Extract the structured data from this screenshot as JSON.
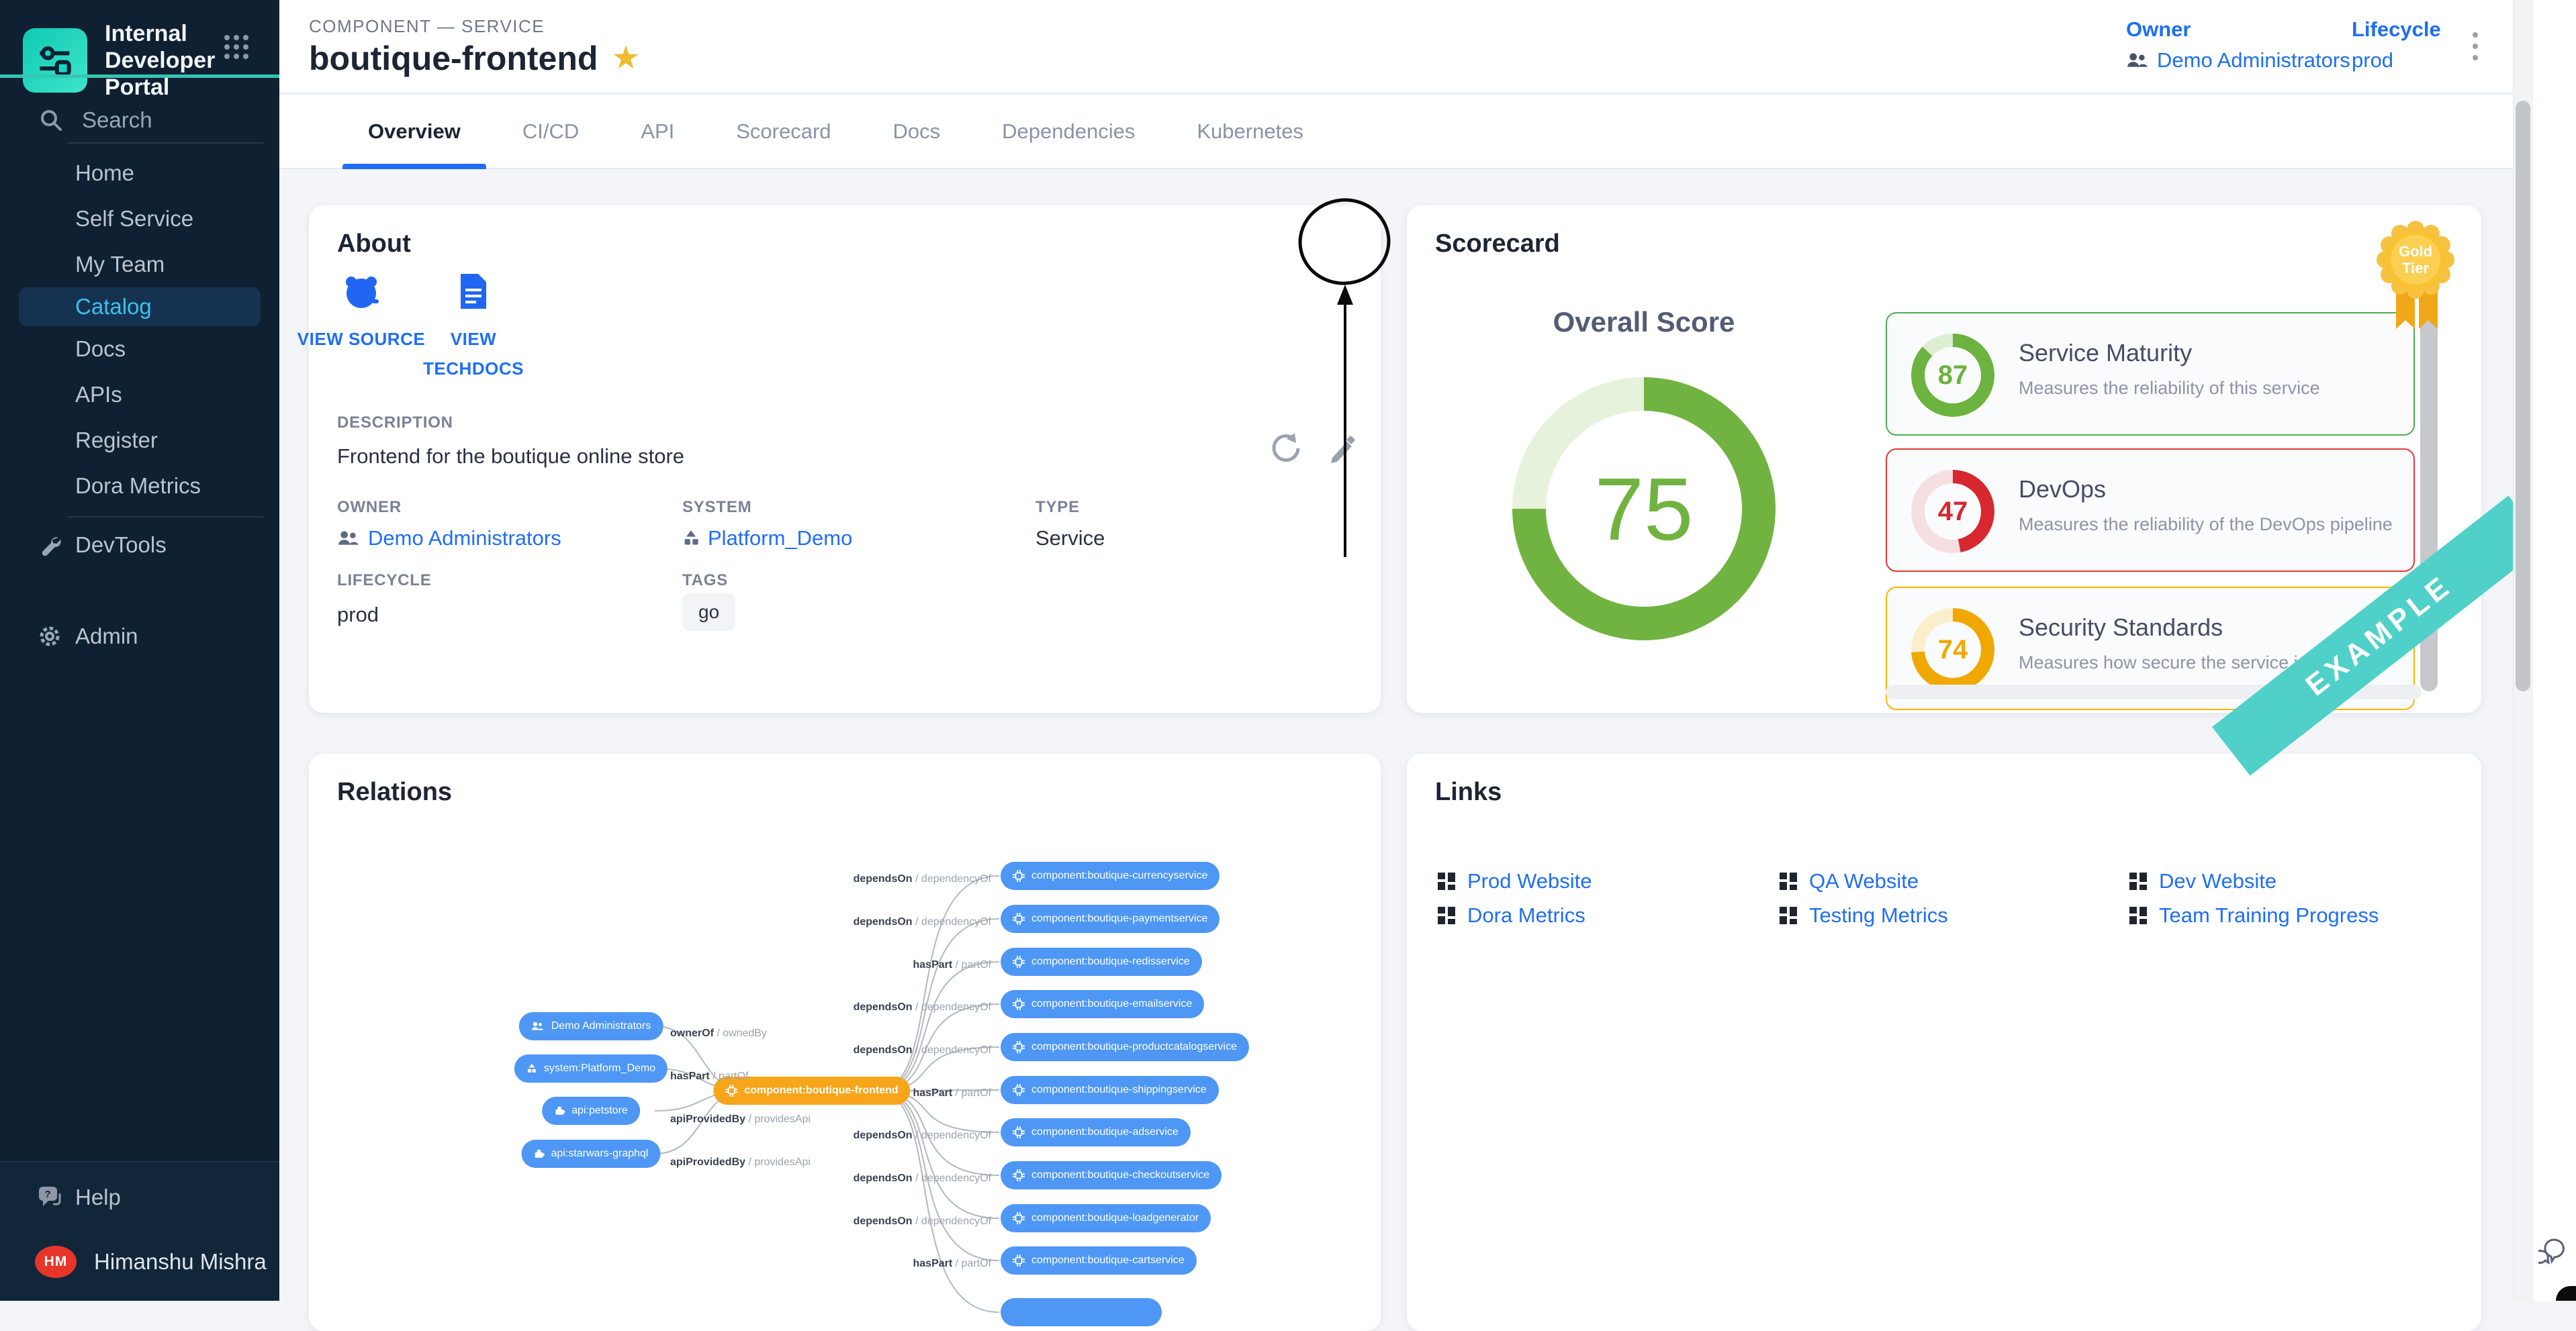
{
  "app": {
    "title": "Internal Developer Portal"
  },
  "sidebar": {
    "search_label": "Search",
    "items": [
      "Home",
      "Self Service",
      "My Team",
      "Catalog",
      "Docs",
      "APIs",
      "Register",
      "Dora Metrics"
    ],
    "active_item": "Catalog",
    "devtools_label": "DevTools",
    "admin_label": "Admin",
    "help_label": "Help",
    "user": {
      "initials": "HM",
      "name": "Himanshu Mishra"
    }
  },
  "header": {
    "breadcrumb": "COMPONENT — SERVICE",
    "title": "boutique-frontend",
    "owner_label": "Owner",
    "owner_value": "Demo Administrators",
    "lifecycle_label": "Lifecycle",
    "lifecycle_value": "prod"
  },
  "tabs": [
    "Overview",
    "CI/CD",
    "API",
    "Scorecard",
    "Docs",
    "Dependencies",
    "Kubernetes"
  ],
  "active_tab": "Overview",
  "about": {
    "title": "About",
    "view_source": "VIEW SOURCE",
    "view_techdocs": "VIEW TECHDOCS",
    "description_label": "DESCRIPTION",
    "description": "Frontend for the boutique online store",
    "owner_label": "OWNER",
    "owner": "Demo Administrators",
    "system_label": "SYSTEM",
    "system": "Platform_Demo",
    "type_label": "TYPE",
    "type": "Service",
    "lifecycle_label": "LIFECYCLE",
    "lifecycle": "prod",
    "tags_label": "TAGS",
    "tags": [
      "go"
    ]
  },
  "scorecard": {
    "title": "Scorecard",
    "overall_label": "Overall Score",
    "overall_score": 75,
    "overall_color": "#71b340",
    "overall_track": "#e7f2dd",
    "badge_line1": "Gold",
    "badge_line2": "Tier",
    "ribbon": "EXAMPLE",
    "items": [
      {
        "name": "Service Maturity",
        "score": 87,
        "description": "Measures the reliability of this service",
        "color": "#6cb33f",
        "track": "#deeed3",
        "border": "#4caf50"
      },
      {
        "name": "DevOps",
        "score": 47,
        "description": "Measures the reliability of the DevOps pipeline",
        "color": "#d7282f",
        "track": "#f6dfe1",
        "border": "#e53935"
      },
      {
        "name": "Security Standards",
        "score": 74,
        "description": "Measures how secure the service is",
        "color": "#f0a800",
        "track": "#fbeecb",
        "border": "#ffb300"
      }
    ]
  },
  "relations": {
    "title": "Relations",
    "center_node": "component:boutique-frontend",
    "left_nodes": [
      {
        "label": "Demo Administrators",
        "icon": "group-icon",
        "edge": "ownerOf / ownedBy"
      },
      {
        "label": "system:Platform_Demo",
        "icon": "system-icon",
        "edge": "hasPart / partOf"
      },
      {
        "label": "api:petstore",
        "icon": "api-icon",
        "edge": "apiProvidedBy / providesApi"
      },
      {
        "label": "api:starwars-graphql",
        "icon": "api-icon",
        "edge": "apiProvidedBy / providesApi"
      }
    ],
    "right_nodes": [
      {
        "label": "component:boutique-currencyservice",
        "edge": "dependsOn / dependencyOf"
      },
      {
        "label": "component:boutique-paymentservice",
        "edge": "dependsOn / dependencyOf"
      },
      {
        "label": "component:boutique-redisservice",
        "edge": "hasPart / partOf"
      },
      {
        "label": "component:boutique-emailservice",
        "edge": "dependsOn / dependencyOf"
      },
      {
        "label": "component:boutique-productcatalogservice",
        "edge": "dependsOn / dependencyOf"
      },
      {
        "label": "component:boutique-shippingservice",
        "edge": "hasPart / partOf"
      },
      {
        "label": "component:boutique-adservice",
        "edge": "dependsOn / dependencyOf"
      },
      {
        "label": "component:boutique-checkoutservice",
        "edge": "dependsOn / dependencyOf"
      },
      {
        "label": "component:boutique-loadgenerator",
        "edge": "dependsOn / dependencyOf"
      },
      {
        "label": "component:boutique-cartservice",
        "edge": "hasPart / partOf"
      },
      {
        "label": "",
        "edge": ""
      }
    ]
  },
  "links": {
    "title": "Links",
    "items": [
      "Prod Website",
      "QA Website",
      "Dev Website",
      "Dora Metrics",
      "Testing Metrics",
      "Team Training Progress"
    ]
  },
  "colors": {
    "accent_blue": "#1f6ef6",
    "sidebar_bg": "#0e2031",
    "active_nav_text": "#3fbff0",
    "teal_accent": "#35c7b4",
    "star": "#f0bc2e",
    "node_blue": "#4e97f5",
    "node_orange": "#f7a51b",
    "ribbon_teal": "#4fd0c8"
  }
}
